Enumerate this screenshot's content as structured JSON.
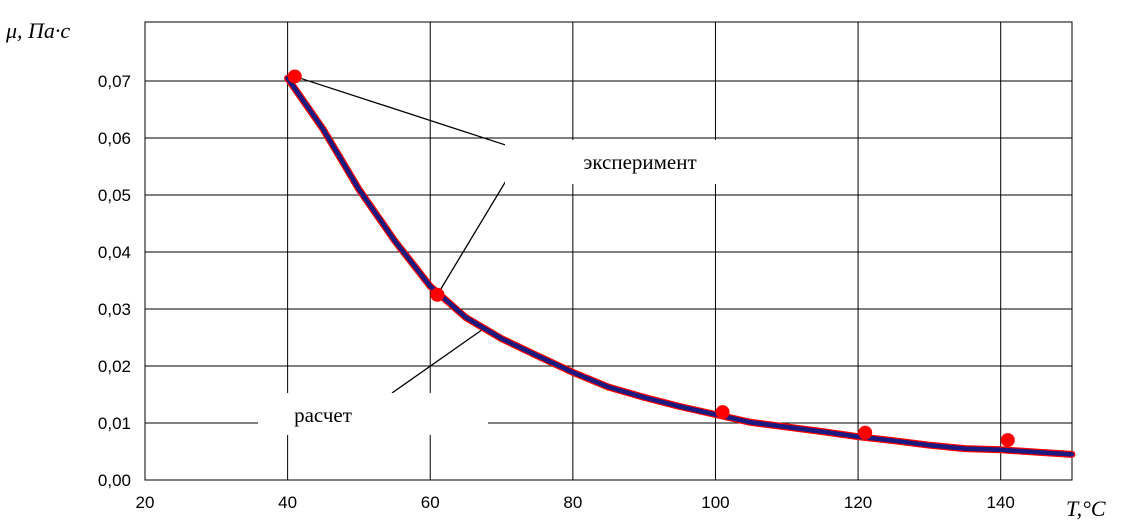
{
  "chart_data": {
    "type": "line",
    "ylabel": "μ, Па·с",
    "xlabel": "T,°C",
    "xlim": [
      20,
      150
    ],
    "ylim": [
      0,
      0.07
    ],
    "x_ticks": [
      {
        "value": 20,
        "label": "20"
      },
      {
        "value": 40,
        "label": "40"
      },
      {
        "value": 60,
        "label": "60"
      },
      {
        "value": 80,
        "label": "80"
      },
      {
        "value": 100,
        "label": "100"
      },
      {
        "value": 120,
        "label": "120"
      },
      {
        "value": 140,
        "label": "140"
      }
    ],
    "y_ticks": [
      {
        "value": 0.0,
        "label": "0,00"
      },
      {
        "value": 0.01,
        "label": "0,01"
      },
      {
        "value": 0.02,
        "label": "0,02"
      },
      {
        "value": 0.03,
        "label": "0,03"
      },
      {
        "value": 0.04,
        "label": "0,04"
      },
      {
        "value": 0.05,
        "label": "0,05"
      },
      {
        "value": 0.06,
        "label": "0,06"
      },
      {
        "value": 0.07,
        "label": "0,07"
      }
    ],
    "grid": true,
    "series": [
      {
        "name": "расчет",
        "kind": "line",
        "color": "#1a1a80",
        "x": [
          40,
          45,
          50,
          55,
          60,
          65,
          70,
          75,
          80,
          85,
          90,
          95,
          100,
          105,
          110,
          115,
          120,
          125,
          130,
          135,
          140,
          145,
          150
        ],
        "y": [
          0.0705,
          0.0615,
          0.051,
          0.042,
          0.034,
          0.0285,
          0.0248,
          0.0218,
          0.0189,
          0.0163,
          0.0145,
          0.0129,
          0.0115,
          0.0101,
          0.0093,
          0.0085,
          0.0076,
          0.0069,
          0.0061,
          0.0055,
          0.0053,
          0.0049,
          0.0045
        ]
      },
      {
        "name": "эксперимент",
        "kind": "scatter",
        "color": "#ff0000",
        "x": [
          41,
          61,
          101,
          121,
          141
        ],
        "y": [
          0.0708,
          0.0325,
          0.0119,
          0.0083,
          0.007
        ]
      }
    ],
    "annotations": [
      {
        "text": "эксперимент",
        "target_series": "эксперимент",
        "targets": [
          [
            41,
            0.0708
          ],
          [
            61,
            0.0325
          ]
        ]
      },
      {
        "text": "расчет",
        "target_series": "расчет",
        "targets": [
          [
            68,
            0.027
          ]
        ]
      }
    ]
  }
}
